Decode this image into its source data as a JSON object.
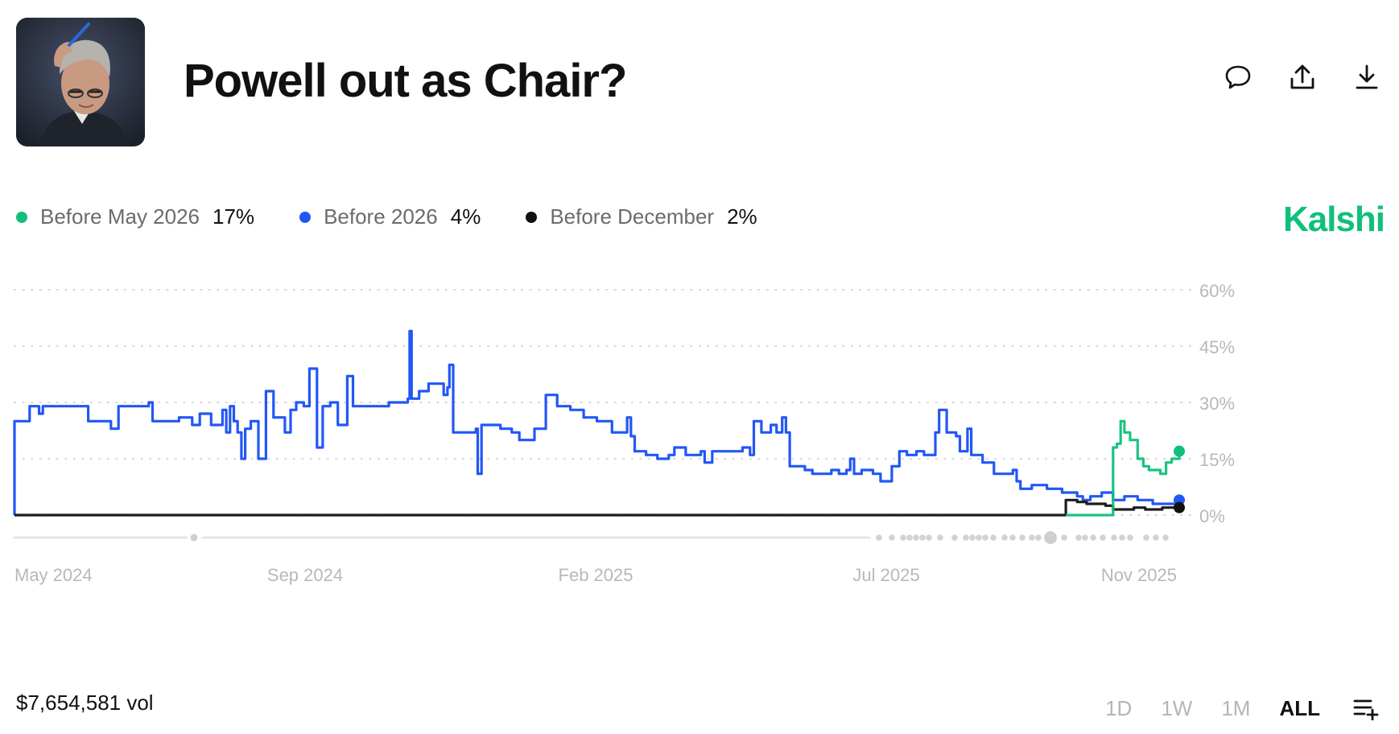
{
  "header": {
    "title": "Powell out as Chair?",
    "actions": [
      "comment-icon",
      "share-icon",
      "download-icon"
    ]
  },
  "brand": "Kalshi",
  "legend": [
    {
      "name": "Before May 2026",
      "value": "17%",
      "color": "#10c07a"
    },
    {
      "name": "Before 2026",
      "value": "4%",
      "color": "#2257f5"
    },
    {
      "name": "Before December",
      "value": "2%",
      "color": "#111111"
    }
  ],
  "footer": {
    "volume": "$7,654,581 vol",
    "ranges": [
      "1D",
      "1W",
      "1M",
      "ALL"
    ],
    "active_range": "ALL"
  },
  "chart_data": {
    "type": "line",
    "x_ticks": [
      "May 2024",
      "Sep 2024",
      "Feb 2025",
      "Jul 2025",
      "Nov 2025"
    ],
    "y_ticks": [
      "0%",
      "15%",
      "30%",
      "45%",
      "60%"
    ],
    "ylim": [
      0,
      60
    ],
    "grid": true,
    "legend_position": "top-left",
    "series": [
      {
        "name": "Before 2026",
        "color": "#2257f5",
        "points": [
          [
            "2024-04-20",
            0
          ],
          [
            "2024-04-20",
            25
          ],
          [
            "2024-04-26",
            25
          ],
          [
            "2024-04-28",
            29
          ],
          [
            "2024-05-03",
            27
          ],
          [
            "2024-05-05",
            29
          ],
          [
            "2024-05-28",
            29
          ],
          [
            "2024-05-29",
            25
          ],
          [
            "2024-06-10",
            23
          ],
          [
            "2024-06-14",
            29
          ],
          [
            "2024-06-30",
            30
          ],
          [
            "2024-07-02",
            25
          ],
          [
            "2024-07-12",
            25
          ],
          [
            "2024-07-16",
            26
          ],
          [
            "2024-07-23",
            24
          ],
          [
            "2024-07-27",
            27
          ],
          [
            "2024-08-02",
            24
          ],
          [
            "2024-08-08",
            28
          ],
          [
            "2024-08-10",
            22
          ],
          [
            "2024-08-12",
            29
          ],
          [
            "2024-08-14",
            25
          ],
          [
            "2024-08-16",
            22
          ],
          [
            "2024-08-18",
            15
          ],
          [
            "2024-08-20",
            23
          ],
          [
            "2024-08-23",
            25
          ],
          [
            "2024-08-27",
            15
          ],
          [
            "2024-08-31",
            33
          ],
          [
            "2024-09-04",
            26
          ],
          [
            "2024-09-10",
            22
          ],
          [
            "2024-09-13",
            28
          ],
          [
            "2024-09-16",
            30
          ],
          [
            "2024-09-20",
            29
          ],
          [
            "2024-09-23",
            39
          ],
          [
            "2024-09-27",
            18
          ],
          [
            "2024-09-30",
            29
          ],
          [
            "2024-10-04",
            30
          ],
          [
            "2024-10-08",
            24
          ],
          [
            "2024-10-13",
            37
          ],
          [
            "2024-10-16",
            29
          ],
          [
            "2024-10-22",
            29
          ],
          [
            "2024-10-28",
            29
          ],
          [
            "2024-11-04",
            30
          ],
          [
            "2024-11-12",
            30
          ],
          [
            "2024-11-14",
            31
          ],
          [
            "2024-11-15",
            49
          ],
          [
            "2024-11-16",
            31
          ],
          [
            "2024-11-20",
            33
          ],
          [
            "2024-11-25",
            35
          ],
          [
            "2024-11-30",
            35
          ],
          [
            "2024-12-03",
            32
          ],
          [
            "2024-12-05",
            34
          ],
          [
            "2024-12-06",
            40
          ],
          [
            "2024-12-08",
            22
          ],
          [
            "2024-12-12",
            22
          ],
          [
            "2024-12-20",
            23
          ],
          [
            "2024-12-21",
            11
          ],
          [
            "2024-12-23",
            24
          ],
          [
            "2024-12-28",
            24
          ],
          [
            "2025-01-02",
            23
          ],
          [
            "2025-01-08",
            22
          ],
          [
            "2025-01-12",
            20
          ],
          [
            "2025-01-20",
            23
          ],
          [
            "2025-01-26",
            32
          ],
          [
            "2025-02-01",
            29
          ],
          [
            "2025-02-08",
            28
          ],
          [
            "2025-02-15",
            26
          ],
          [
            "2025-02-22",
            25
          ],
          [
            "2025-03-02",
            22
          ],
          [
            "2025-03-07",
            22
          ],
          [
            "2025-03-10",
            26
          ],
          [
            "2025-03-12",
            21
          ],
          [
            "2025-03-14",
            17
          ],
          [
            "2025-03-20",
            16
          ],
          [
            "2025-03-26",
            15
          ],
          [
            "2025-04-01",
            16
          ],
          [
            "2025-04-04",
            18
          ],
          [
            "2025-04-10",
            16
          ],
          [
            "2025-04-18",
            17
          ],
          [
            "2025-04-20",
            14
          ],
          [
            "2025-04-24",
            17
          ],
          [
            "2025-05-02",
            17
          ],
          [
            "2025-05-10",
            18
          ],
          [
            "2025-05-14",
            16
          ],
          [
            "2025-05-16",
            25
          ],
          [
            "2025-05-20",
            22
          ],
          [
            "2025-05-25",
            24
          ],
          [
            "2025-05-28",
            22
          ],
          [
            "2025-05-31",
            26
          ],
          [
            "2025-06-02",
            22
          ],
          [
            "2025-06-04",
            13
          ],
          [
            "2025-06-09",
            13
          ],
          [
            "2025-06-12",
            12
          ],
          [
            "2025-06-16",
            11
          ],
          [
            "2025-06-22",
            11
          ],
          [
            "2025-06-26",
            12
          ],
          [
            "2025-06-30",
            11
          ],
          [
            "2025-07-04",
            12
          ],
          [
            "2025-07-06",
            15
          ],
          [
            "2025-07-08",
            11
          ],
          [
            "2025-07-12",
            12
          ],
          [
            "2025-07-18",
            11
          ],
          [
            "2025-07-22",
            9
          ],
          [
            "2025-07-28",
            13
          ],
          [
            "2025-08-01",
            17
          ],
          [
            "2025-08-05",
            16
          ],
          [
            "2025-08-10",
            17
          ],
          [
            "2025-08-14",
            16
          ],
          [
            "2025-08-20",
            22
          ],
          [
            "2025-08-22",
            28
          ],
          [
            "2025-08-26",
            22
          ],
          [
            "2025-08-31",
            21
          ],
          [
            "2025-09-02",
            17
          ],
          [
            "2025-09-06",
            23
          ],
          [
            "2025-09-08",
            16
          ],
          [
            "2025-09-14",
            14
          ],
          [
            "2025-09-20",
            11
          ],
          [
            "2025-09-26",
            11
          ],
          [
            "2025-09-30",
            12
          ],
          [
            "2025-10-02",
            9
          ],
          [
            "2025-10-04",
            7
          ],
          [
            "2025-10-10",
            8
          ],
          [
            "2025-10-18",
            7
          ],
          [
            "2025-10-26",
            6
          ],
          [
            "2025-11-03",
            5
          ],
          [
            "2025-11-06",
            4
          ],
          [
            "2025-11-10",
            5
          ],
          [
            "2025-11-16",
            6
          ],
          [
            "2025-11-22",
            4
          ],
          [
            "2025-11-28",
            5
          ],
          [
            "2025-12-05",
            4
          ],
          [
            "2025-12-13",
            3
          ],
          [
            "2025-12-20",
            3
          ],
          [
            "2025-12-27",
            4
          ]
        ]
      },
      {
        "name": "Before December",
        "color": "#111111",
        "points": [
          [
            "2024-04-20",
            0
          ],
          [
            "2025-10-28",
            0
          ],
          [
            "2025-10-28",
            4
          ],
          [
            "2025-11-03",
            3.5
          ],
          [
            "2025-11-08",
            3
          ],
          [
            "2025-11-14",
            3
          ],
          [
            "2025-11-18",
            2.5
          ],
          [
            "2025-11-22",
            1.5
          ],
          [
            "2025-11-27",
            1.5
          ],
          [
            "2025-12-03",
            2
          ],
          [
            "2025-12-09",
            1.5
          ],
          [
            "2025-12-14",
            1.5
          ],
          [
            "2025-12-18",
            2
          ],
          [
            "2025-12-23",
            2
          ],
          [
            "2025-12-27",
            2
          ]
        ]
      },
      {
        "name": "Before May 2026",
        "color": "#10c07a",
        "points": [
          [
            "2025-10-28",
            0
          ],
          [
            "2025-11-22",
            0
          ],
          [
            "2025-11-22",
            18
          ],
          [
            "2025-11-24",
            19
          ],
          [
            "2025-11-26",
            25
          ],
          [
            "2025-11-28",
            22
          ],
          [
            "2025-12-01",
            20
          ],
          [
            "2025-12-05",
            15
          ],
          [
            "2025-12-08",
            13
          ],
          [
            "2025-12-11",
            12
          ],
          [
            "2025-12-14",
            12
          ],
          [
            "2025-12-17",
            11
          ],
          [
            "2025-12-20",
            14
          ],
          [
            "2025-12-23",
            15
          ],
          [
            "2025-12-27",
            17
          ]
        ]
      }
    ]
  }
}
